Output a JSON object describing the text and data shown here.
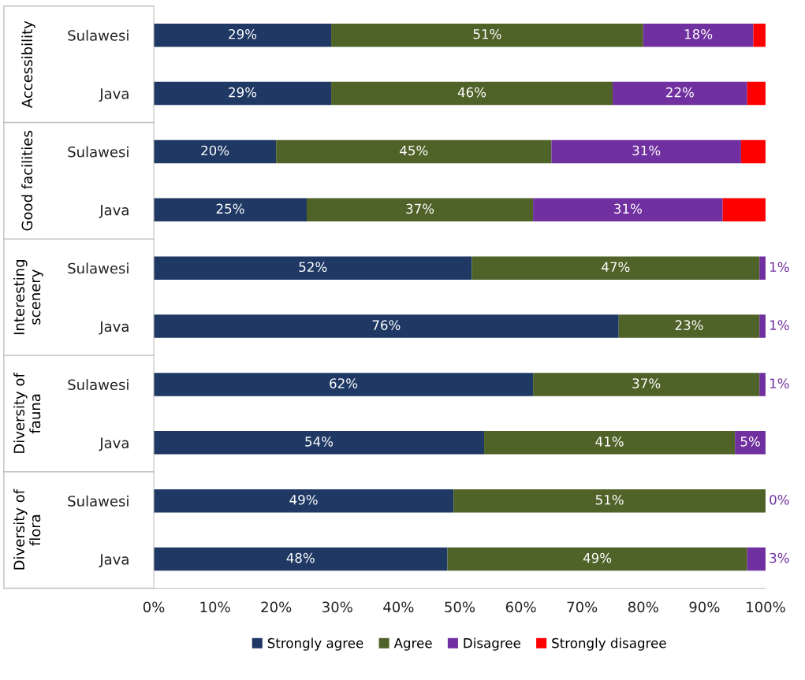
{
  "chart_data": {
    "type": "bar",
    "orientation": "horizontal",
    "stacked": true,
    "categories": [
      "Sulawesi",
      "Java",
      "Sulawesi",
      "Java",
      "Sulawesi",
      "Java",
      "Sulawesi",
      "Java",
      "Sulawesi",
      "Java"
    ],
    "series": [
      {
        "name": "Strongly agree",
        "color": "#1f3864",
        "values": [
          29,
          29,
          20,
          25,
          52,
          76,
          62,
          54,
          49,
          48
        ],
        "value_labels": [
          "29%",
          "29%",
          "20%",
          "25%",
          "52%",
          "76%",
          "62%",
          "54%",
          "49%",
          "48%"
        ]
      },
      {
        "name": "Agree",
        "color": "#4f6228",
        "values": [
          51,
          46,
          45,
          37,
          47,
          23,
          37,
          41,
          51,
          49
        ],
        "value_labels": [
          "51%",
          "46%",
          "45%",
          "37%",
          "47%",
          "23%",
          "37%",
          "41%",
          "51%",
          "49%"
        ]
      },
      {
        "name": "Disagree",
        "color": "#7030a0",
        "values": [
          18,
          22,
          31,
          31,
          1,
          1,
          1,
          5,
          0,
          3
        ],
        "value_labels": [
          "18%",
          "22%",
          "31%",
          "31%",
          "1%",
          "1%",
          "1%",
          "5%",
          "0%",
          "3%"
        ]
      },
      {
        "name": "Strongly disagree",
        "color": "#ff0000",
        "values": [
          2,
          3,
          4,
          7,
          0,
          0,
          0,
          0,
          0,
          0
        ]
      }
    ],
    "annotations": [
      "Accessibility",
      "Good facilities",
      "Interesting\nscenery",
      "Diversity of\nfauna",
      "Diversity of\nflora"
    ],
    "xlim": [
      0,
      100
    ],
    "xticks": [
      {
        "value": 0,
        "label": "0%"
      },
      {
        "value": 10,
        "label": "10%"
      },
      {
        "value": 20,
        "label": "20%"
      },
      {
        "value": 30,
        "label": "30%"
      },
      {
        "value": 40,
        "label": "40%"
      },
      {
        "value": 50,
        "label": "50%"
      },
      {
        "value": 60,
        "label": "60%"
      },
      {
        "value": 70,
        "label": "70%"
      },
      {
        "value": 80,
        "label": "80%"
      },
      {
        "value": 90,
        "label": "90%"
      },
      {
        "value": 100,
        "label": "100%"
      }
    ],
    "legend": "bottom"
  }
}
